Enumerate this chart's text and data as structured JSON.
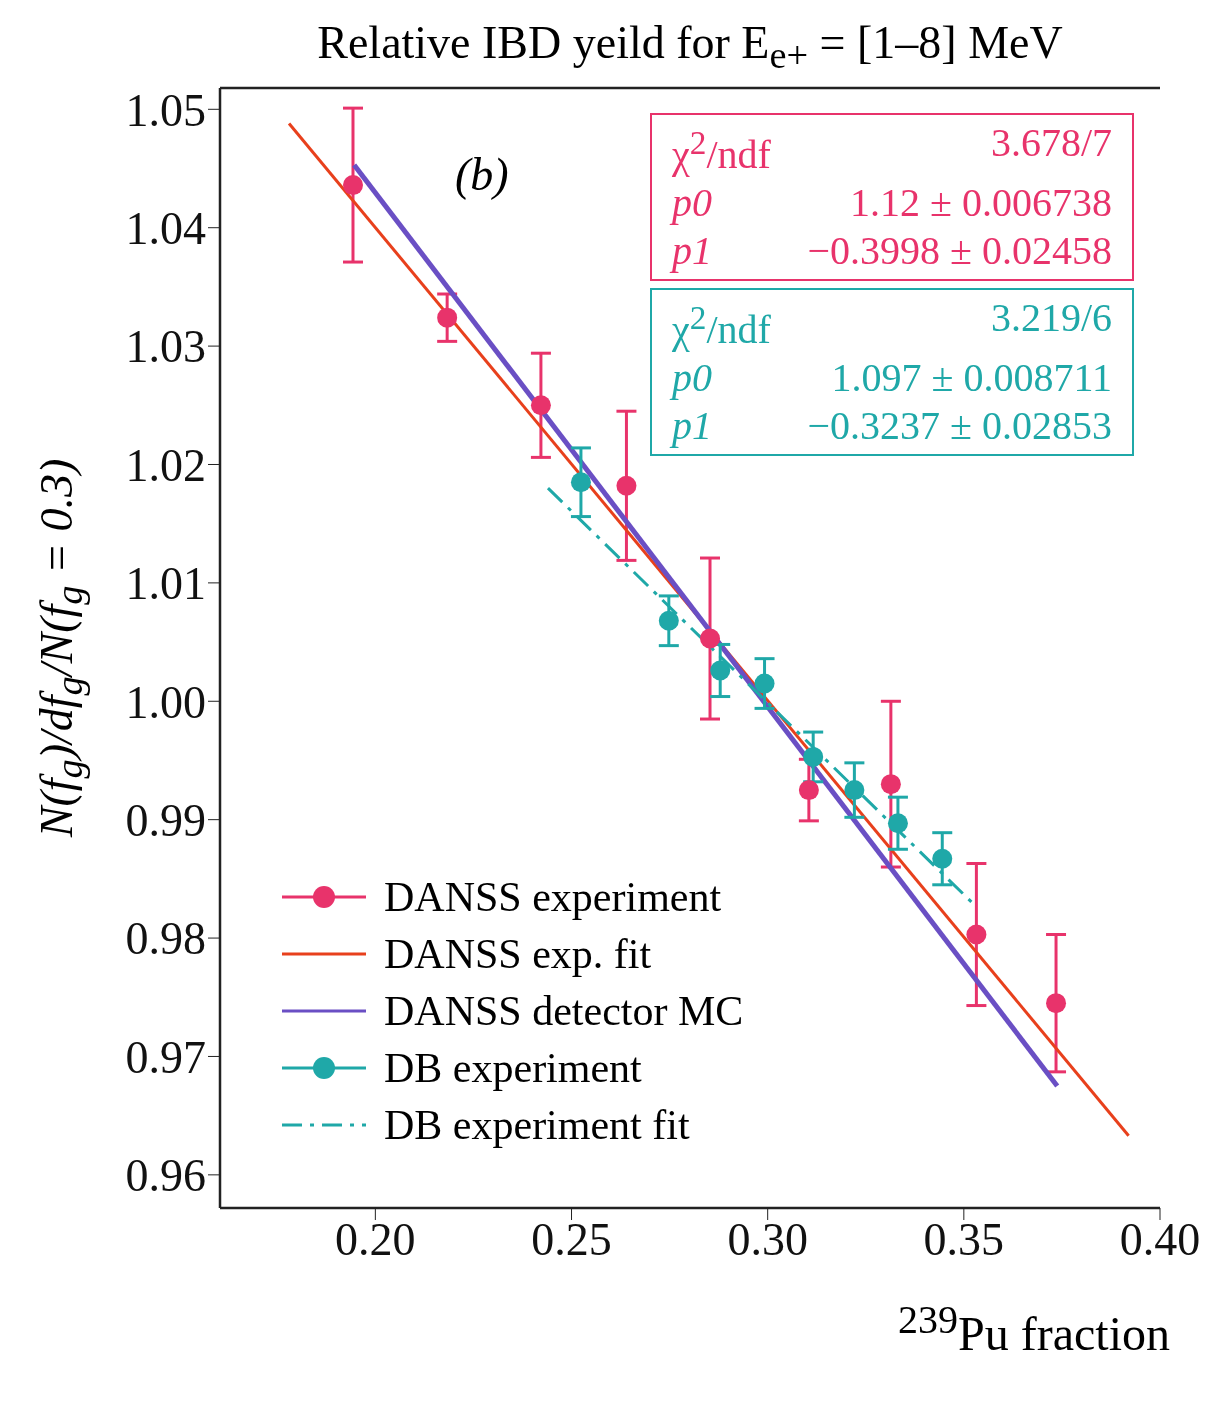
{
  "chart_data": {
    "type": "scatter",
    "title": "Relative IBD yeild for E$_{e+}$ = [1–8] MeV",
    "xlabel": "$^{239}$Pu fraction",
    "ylabel": "N(f$_{g}$)/df$_{g}$/N(f$_{g}$ = 0.3)",
    "xlim": [
      0.1604,
      0.4
    ],
    "ylim": [
      0.9572,
      1.0518
    ],
    "xticks": [
      {
        "value": 0.2,
        "label": "0.20"
      },
      0.25,
      {
        "value": 0.3,
        "label": "0.30"
      },
      0.35,
      {
        "value": 0.4,
        "label": "0.40"
      }
    ],
    "yticks": [
      0.96,
      0.97,
      0.98,
      0.99,
      {
        "value": 1.0,
        "label": "1.00"
      },
      1.01,
      1.02,
      1.03,
      1.04,
      1.05
    ],
    "grid": false,
    "legend": "bottom left",
    "annotations": [
      "(b)",
      "χ$^{2}$/ndf 3.678/7",
      "p0 1.12 ± 0.006738",
      "p1 −0.3998 ± 0.02458",
      "χ$^{2}$/ndf 3.219/6",
      "p0 1.097 ± 0.008711",
      "p1 −0.3237 ± 0.02853"
    ],
    "series": [
      {
        "name": "DANSS experiment",
        "marker": "circle",
        "color": "#e8336b",
        "x": [
          0.1943,
          0.2183,
          0.2422,
          0.264,
          0.2853,
          0.3105,
          0.3314,
          0.3532,
          0.3735
        ],
        "values": [
          1.0436,
          1.0324,
          1.025,
          1.0182,
          1.0053,
          0.9925,
          0.993,
          0.9803,
          0.9745
        ],
        "errors": [
          0.0065,
          0.002,
          0.0044,
          0.0063,
          0.0068,
          0.0026,
          0.007,
          0.006,
          0.0058
        ]
      },
      {
        "name": "DANSS exp. fit",
        "type": "line",
        "marker": "none",
        "line_style": "solid",
        "color": "#e8401c",
        "x": [
          0.178,
          0.392
        ],
        "values": [
          1.0488,
          0.9633
        ]
      },
      {
        "name": "DANSS detector MC",
        "type": "line",
        "marker": "none",
        "line_style": "solid",
        "color": "#6a4fc4",
        "x": [
          0.1946,
          0.3738
        ],
        "values": [
          1.0453,
          0.9675
        ]
      },
      {
        "name": "DB experiment",
        "marker": "circle",
        "color": "#1fa8a8",
        "x": [
          0.2524,
          0.2748,
          0.2879,
          0.2992,
          0.3116,
          0.3221,
          0.3332,
          0.3445
        ],
        "values": [
          1.0185,
          1.0068,
          1.0026,
          1.0015,
          0.9953,
          0.9925,
          0.9897,
          0.9867
        ],
        "errors": [
          0.0029,
          0.0021,
          0.0022,
          0.0021,
          0.0021,
          0.0023,
          0.0022,
          0.0022
        ]
      },
      {
        "name": "DB experiment fit",
        "type": "line",
        "marker": "none",
        "line_style": "dashed",
        "color": "#1fa8a8",
        "x": [
          0.244,
          0.3527
        ],
        "values": [
          1.018,
          0.9828
        ]
      }
    ]
  }
}
